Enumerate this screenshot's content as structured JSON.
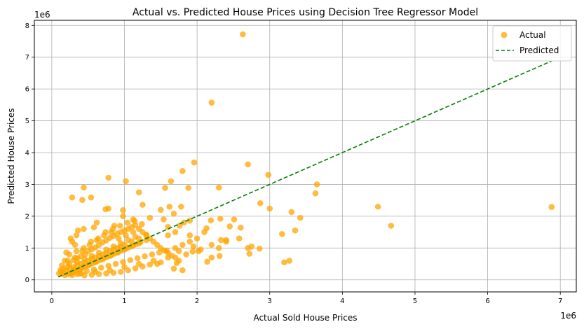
{
  "chart_data": {
    "type": "scatter",
    "title": "Actual vs. Predicted House Prices using Decision Tree Regressor Model",
    "xlabel": "Actual Sold House Prices",
    "ylabel": "Predicted House Prices",
    "x_offset_label": "1e6",
    "y_offset_label": "1e6",
    "xlim": [
      -0.24,
      7.22
    ],
    "ylim": [
      -0.38,
      8.16
    ],
    "x_ticks": [
      0,
      1,
      2,
      3,
      4,
      5,
      6,
      7
    ],
    "y_ticks": [
      0,
      1,
      2,
      3,
      4,
      5,
      6,
      7,
      8
    ],
    "grid": true,
    "legend_position": "top-right",
    "colors": {
      "actual": "#FFA500",
      "predicted": "#008000"
    },
    "series": [
      {
        "name": "Actual",
        "kind": "scatter",
        "points": [
          [
            2.63,
            7.72
          ],
          [
            2.2,
            5.57
          ],
          [
            2.7,
            3.63
          ],
          [
            1.96,
            3.69
          ],
          [
            1.8,
            3.42
          ],
          [
            2.98,
            3.3
          ],
          [
            3.65,
            3.0
          ],
          [
            1.64,
            3.1
          ],
          [
            0.78,
            3.21
          ],
          [
            1.02,
            3.1
          ],
          [
            0.44,
            2.9
          ],
          [
            0.28,
            2.59
          ],
          [
            0.54,
            2.59
          ],
          [
            0.42,
            2.51
          ],
          [
            1.56,
            2.89
          ],
          [
            1.88,
            2.89
          ],
          [
            1.2,
            2.75
          ],
          [
            2.3,
            2.9
          ],
          [
            3.63,
            2.72
          ],
          [
            2.87,
            2.41
          ],
          [
            3.0,
            2.24
          ],
          [
            1.62,
            2.3
          ],
          [
            1.78,
            2.3
          ],
          [
            1.25,
            2.36
          ],
          [
            1.5,
            2.2
          ],
          [
            0.78,
            2.24
          ],
          [
            0.74,
            2.22
          ],
          [
            0.98,
            2.19
          ],
          [
            1.68,
            2.08
          ],
          [
            1.54,
            1.9
          ],
          [
            3.3,
            2.13
          ],
          [
            3.42,
            1.95
          ],
          [
            4.49,
            2.3
          ],
          [
            6.88,
            2.29
          ],
          [
            4.67,
            1.7
          ],
          [
            3.35,
            1.55
          ],
          [
            3.17,
            1.44
          ],
          [
            2.32,
            1.92
          ],
          [
            2.51,
            1.9
          ],
          [
            2.45,
            1.68
          ],
          [
            2.6,
            1.64
          ],
          [
            2.19,
            1.87
          ],
          [
            2.13,
            1.62
          ],
          [
            2.33,
            1.25
          ],
          [
            2.4,
            1.25
          ],
          [
            2.58,
            1.3
          ],
          [
            2.4,
            1.2
          ],
          [
            2.7,
            1.0
          ],
          [
            2.75,
            1.05
          ],
          [
            2.86,
            0.98
          ],
          [
            2.72,
            0.82
          ],
          [
            3.2,
            0.55
          ],
          [
            3.27,
            0.6
          ],
          [
            2.02,
            0.9
          ],
          [
            2.14,
            0.57
          ],
          [
            2.2,
            0.7
          ],
          [
            2.31,
            0.75
          ],
          [
            1.94,
            0.89
          ],
          [
            1.72,
            0.53
          ],
          [
            1.8,
            0.3
          ],
          [
            1.68,
            0.35
          ],
          [
            1.82,
            1.8
          ],
          [
            1.76,
            1.7
          ],
          [
            1.6,
            1.66
          ],
          [
            1.9,
            1.86
          ],
          [
            1.35,
            1.95
          ],
          [
            1.12,
            1.9
          ],
          [
            0.98,
            2.0
          ],
          [
            0.86,
            1.7
          ],
          [
            0.62,
            1.8
          ],
          [
            0.58,
            1.65
          ],
          [
            0.44,
            1.6
          ],
          [
            0.36,
            1.55
          ],
          [
            0.34,
            1.4
          ],
          [
            0.28,
            1.2
          ],
          [
            0.26,
            1.3
          ],
          [
            0.32,
            1.1
          ],
          [
            0.2,
            0.86
          ],
          [
            0.18,
            0.6
          ],
          [
            0.14,
            0.45
          ],
          [
            0.12,
            0.3
          ],
          [
            0.1,
            0.2
          ],
          [
            0.13,
            0.25
          ],
          [
            0.16,
            0.34
          ],
          [
            0.22,
            0.42
          ],
          [
            0.24,
            0.5
          ],
          [
            0.3,
            0.62
          ],
          [
            0.35,
            0.68
          ],
          [
            0.4,
            0.74
          ],
          [
            0.46,
            0.8
          ],
          [
            0.5,
            0.9
          ],
          [
            0.55,
            0.96
          ],
          [
            0.6,
            1.02
          ],
          [
            0.65,
            1.1
          ],
          [
            0.7,
            1.18
          ],
          [
            0.75,
            1.24
          ],
          [
            0.8,
            1.32
          ],
          [
            0.85,
            1.38
          ],
          [
            0.9,
            1.45
          ],
          [
            0.95,
            1.5
          ],
          [
            1.0,
            1.55
          ],
          [
            1.05,
            1.6
          ],
          [
            1.1,
            1.66
          ],
          [
            1.15,
            1.72
          ],
          [
            1.2,
            1.6
          ],
          [
            1.25,
            1.5
          ],
          [
            1.3,
            1.42
          ],
          [
            1.35,
            1.3
          ],
          [
            1.4,
            1.2
          ],
          [
            1.45,
            1.1
          ],
          [
            1.5,
            1.0
          ],
          [
            1.55,
            0.92
          ],
          [
            1.6,
            0.85
          ],
          [
            1.65,
            0.76
          ],
          [
            1.7,
            0.7
          ],
          [
            1.75,
            0.6
          ],
          [
            1.45,
            0.5
          ],
          [
            1.35,
            0.48
          ],
          [
            1.25,
            0.42
          ],
          [
            1.15,
            0.36
          ],
          [
            1.05,
            0.3
          ],
          [
            0.95,
            0.25
          ],
          [
            0.85,
            0.22
          ],
          [
            0.75,
            0.2
          ],
          [
            0.65,
            0.18
          ],
          [
            0.55,
            0.16
          ],
          [
            0.45,
            0.14
          ],
          [
            0.35,
            0.18
          ],
          [
            0.25,
            0.22
          ],
          [
            0.15,
            0.2
          ],
          [
            0.2,
            0.3
          ],
          [
            0.3,
            0.4
          ],
          [
            0.4,
            0.5
          ],
          [
            0.5,
            0.6
          ],
          [
            0.6,
            0.7
          ],
          [
            0.7,
            0.8
          ],
          [
            0.8,
            0.9
          ],
          [
            0.9,
            1.0
          ],
          [
            1.0,
            1.1
          ],
          [
            1.1,
            1.2
          ],
          [
            1.2,
            1.3
          ],
          [
            1.3,
            1.4
          ],
          [
            0.3,
            0.25
          ],
          [
            0.4,
            0.35
          ],
          [
            0.5,
            0.45
          ],
          [
            0.6,
            0.55
          ],
          [
            0.7,
            0.65
          ],
          [
            0.8,
            0.75
          ],
          [
            0.9,
            0.85
          ],
          [
            1.0,
            0.95
          ],
          [
            1.1,
            1.05
          ],
          [
            1.2,
            1.15
          ],
          [
            1.3,
            1.25
          ],
          [
            0.35,
            0.55
          ],
          [
            0.45,
            0.65
          ],
          [
            0.55,
            0.75
          ],
          [
            0.65,
            0.85
          ],
          [
            0.75,
            0.95
          ],
          [
            0.85,
            1.05
          ],
          [
            0.95,
            1.15
          ],
          [
            1.05,
            1.25
          ],
          [
            1.15,
            1.35
          ],
          [
            0.25,
            0.35
          ],
          [
            0.35,
            0.45
          ],
          [
            0.45,
            0.55
          ],
          [
            0.55,
            0.65
          ],
          [
            0.65,
            0.75
          ],
          [
            0.75,
            0.85
          ],
          [
            0.85,
            0.95
          ],
          [
            0.95,
            1.05
          ],
          [
            0.22,
            0.6
          ],
          [
            0.32,
            0.7
          ],
          [
            0.42,
            0.9
          ],
          [
            0.52,
            1.1
          ],
          [
            0.62,
            1.25
          ],
          [
            0.72,
            1.4
          ],
          [
            0.82,
            1.5
          ],
          [
            0.92,
            1.3
          ],
          [
            1.02,
            1.4
          ],
          [
            1.12,
            1.5
          ],
          [
            0.28,
            0.15
          ],
          [
            0.38,
            0.2
          ],
          [
            0.48,
            0.28
          ],
          [
            0.58,
            0.32
          ],
          [
            0.68,
            0.38
          ],
          [
            0.78,
            0.44
          ],
          [
            0.88,
            0.5
          ],
          [
            0.98,
            0.56
          ],
          [
            1.08,
            0.62
          ],
          [
            1.18,
            0.68
          ],
          [
            1.28,
            0.74
          ],
          [
            1.38,
            0.8
          ],
          [
            1.48,
            0.86
          ],
          [
            1.58,
            0.92
          ],
          [
            0.18,
            0.15
          ],
          [
            0.22,
            0.18
          ],
          [
            0.26,
            0.2
          ],
          [
            0.3,
            0.3
          ],
          [
            0.34,
            0.32
          ],
          [
            0.38,
            0.28
          ],
          [
            0.42,
            0.38
          ],
          [
            0.46,
            0.42
          ],
          [
            0.52,
            0.48
          ],
          [
            0.56,
            0.52
          ],
          [
            0.62,
            0.58
          ],
          [
            0.66,
            0.62
          ],
          [
            0.72,
            0.68
          ],
          [
            0.76,
            0.72
          ],
          [
            0.82,
            0.78
          ],
          [
            0.86,
            0.82
          ],
          [
            0.92,
            0.88
          ],
          [
            0.96,
            0.92
          ],
          [
            1.02,
            0.98
          ],
          [
            1.06,
            1.02
          ],
          [
            1.12,
            1.08
          ],
          [
            1.16,
            1.12
          ],
          [
            1.22,
            1.18
          ],
          [
            0.24,
            0.8
          ],
          [
            0.34,
            0.9
          ],
          [
            0.44,
            1.0
          ],
          [
            0.54,
            1.2
          ],
          [
            0.64,
            1.3
          ],
          [
            0.74,
            1.5
          ],
          [
            0.84,
            1.6
          ],
          [
            0.94,
            1.7
          ],
          [
            1.04,
            1.8
          ],
          [
            1.14,
            1.85
          ],
          [
            1.24,
            1.75
          ],
          [
            0.4,
            0.2
          ],
          [
            0.6,
            0.25
          ],
          [
            0.8,
            0.3
          ],
          [
            1.0,
            0.4
          ],
          [
            1.2,
            0.5
          ],
          [
            1.4,
            0.6
          ],
          [
            1.6,
            0.7
          ],
          [
            1.5,
            0.55
          ],
          [
            1.7,
            1.0
          ],
          [
            1.8,
            1.1
          ],
          [
            1.9,
            1.2
          ],
          [
            1.6,
            1.4
          ],
          [
            1.7,
            1.5
          ],
          [
            1.9,
            1.4
          ],
          [
            2.0,
            1.3
          ],
          [
            2.1,
            1.5
          ],
          [
            2.2,
            1.1
          ],
          [
            2.3,
            1.0
          ],
          [
            2.05,
            0.95
          ],
          [
            1.95,
            1.05
          ],
          [
            1.85,
            0.8
          ],
          [
            1.75,
            0.9
          ]
        ]
      },
      {
        "name": "Predicted",
        "kind": "line",
        "style": "dashed",
        "points": [
          [
            0.09,
            0.09
          ],
          [
            6.88,
            6.88
          ]
        ]
      }
    ]
  }
}
